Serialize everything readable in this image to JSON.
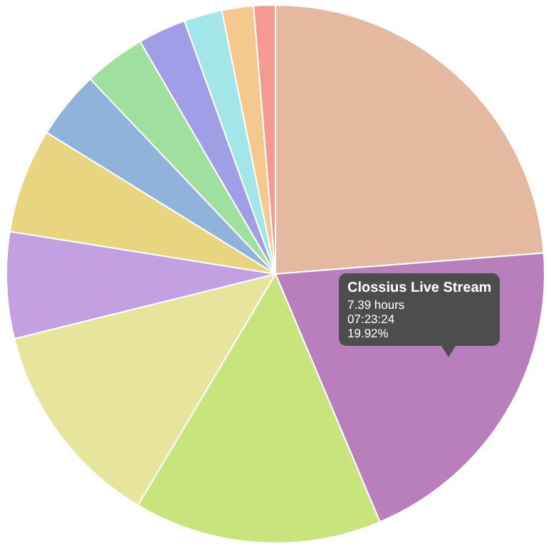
{
  "chart_data": {
    "type": "pie",
    "categories": [
      null,
      null,
      null,
      null,
      null,
      null,
      null,
      null,
      null,
      null,
      null,
      null
    ],
    "values": [
      23.78,
      19.92,
      14.9,
      12.6,
      6.4,
      6.3,
      4.1,
      3.7,
      2.9,
      2.3,
      1.9,
      1.3
    ],
    "colors": [
      "#e5b9a0",
      "#b87fbc",
      "#c8e57d",
      "#e7e49e",
      "#c3a0e2",
      "#e8d57f",
      "#8fb3db",
      "#9fe09f",
      "#a09ee6",
      "#a3e6ea",
      "#f5c98e",
      "#f59a90"
    ],
    "annotations": [
      "Clossius Live Stream",
      "7.39 hours",
      "07:23:24",
      "19.92%"
    ],
    "legend": false
  }
}
